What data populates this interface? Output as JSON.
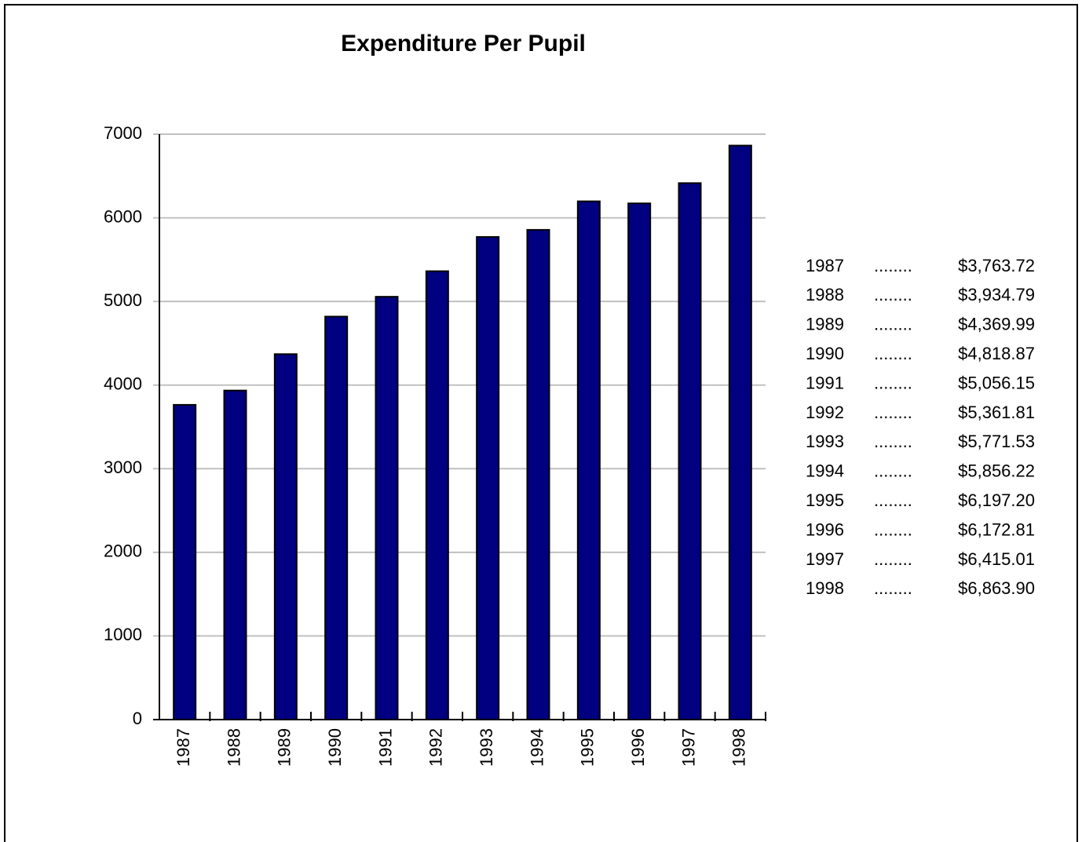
{
  "chart_data": {
    "type": "bar",
    "title": "Expenditure Per Pupil",
    "categories": [
      "1987",
      "1988",
      "1989",
      "1990",
      "1991",
      "1992",
      "1993",
      "1994",
      "1995",
      "1996",
      "1997",
      "1998"
    ],
    "values": [
      3763.72,
      3934.79,
      4369.99,
      4818.87,
      5056.15,
      5361.81,
      5771.53,
      5856.22,
      6197.2,
      6172.81,
      6415.01,
      6863.9
    ],
    "value_labels": [
      "$3,763.72",
      "$3,934.79",
      "$4,369.99",
      "$4,818.87",
      "$5,056.15",
      "$5,361.81",
      "$5,771.53",
      "$5,856.22",
      "$6,197.20",
      "$6,172.81",
      "$6,415.01",
      "$6,863.90"
    ],
    "table_leader": "........",
    "color": "#000080",
    "ylim": [
      0,
      7000
    ],
    "yticks": [
      0,
      1000,
      2000,
      3000,
      4000,
      5000,
      6000,
      7000
    ],
    "grid": true
  }
}
